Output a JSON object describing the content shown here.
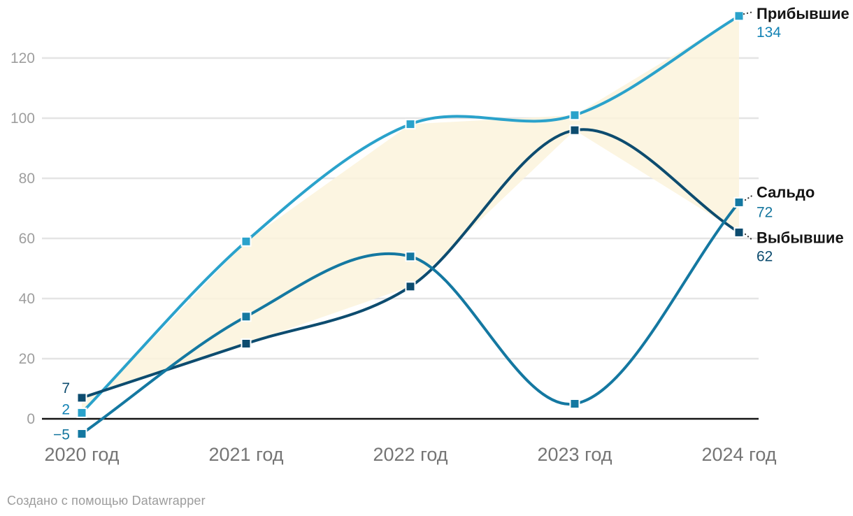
{
  "chart_data": {
    "type": "line",
    "x_labels": [
      "2020 год",
      "2021 год",
      "2022 год",
      "2023 год",
      "2024 год"
    ],
    "y_ticks": [
      0,
      20,
      40,
      60,
      80,
      100,
      120
    ],
    "y_tick_labels": [
      "0",
      "20",
      "40",
      "60",
      "80",
      "100",
      "120"
    ],
    "ylim": [
      -10,
      140
    ],
    "grid": "horizontal",
    "legend_position": "direct-labels-right",
    "series": [
      {
        "name": "Прибывшие",
        "values": [
          2,
          59,
          98,
          101,
          134
        ],
        "first_label": "2",
        "last_label": "134",
        "color": "#2aa2cb",
        "value_color": "#1282b4"
      },
      {
        "name": "Сальдо",
        "values": [
          -5,
          34,
          54,
          5,
          72
        ],
        "first_label": "−5",
        "last_label": "72",
        "color": "#1478a1",
        "value_color": "#15769e"
      },
      {
        "name": "Выбывшие",
        "values": [
          7,
          25,
          44,
          96,
          62
        ],
        "first_label": "7",
        "last_label": "62",
        "color": "#0d4c6f",
        "value_color": "#0d4c6f"
      }
    ],
    "area_fill": {
      "between": [
        "Прибывшие",
        "Выбывшие"
      ],
      "color": "#fcf3dc"
    }
  },
  "footer": {
    "credit": "Создано с помощью Datawrapper"
  },
  "colors": {
    "background": "#ffffff",
    "gridline": "#e4e4e4",
    "zero_line": "#141414",
    "y_tick_text": "#9e9e9e",
    "x_tick_text": "#757575",
    "series_name_text": "#141414",
    "connector_dot": "#333333",
    "credit_text": "#9c9c9c"
  }
}
